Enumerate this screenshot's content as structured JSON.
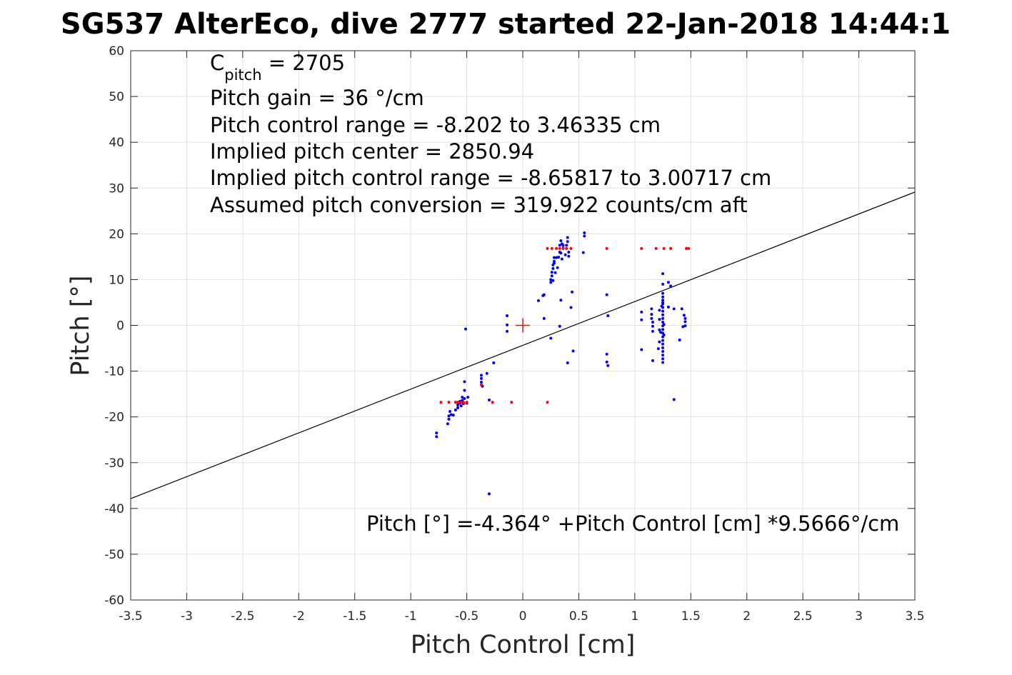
{
  "chart_data": {
    "type": "scatter",
    "title": "SG537 AlterEco, dive 2777 started 22-Jan-2018 14:44:1",
    "xlabel": "Pitch Control [cm]",
    "ylabel": "Pitch [°]",
    "xlim": [
      -3.5,
      3.5
    ],
    "ylim": [
      -60,
      60
    ],
    "xticks": [
      -3.5,
      -3,
      -2.5,
      -2,
      -1.5,
      -1,
      -0.5,
      0,
      0.5,
      1,
      1.5,
      2,
      2.5,
      3,
      3.5
    ],
    "xtick_labels": [
      "-3.5",
      "-3",
      "-2.5",
      "-2",
      "-1.5",
      "-1",
      "-0.5",
      "0",
      "0.5",
      "1",
      "1.5",
      "2",
      "2.5",
      "3",
      "3.5"
    ],
    "yticks": [
      -60,
      -50,
      -40,
      -30,
      -20,
      -10,
      0,
      10,
      20,
      30,
      40,
      50,
      60
    ],
    "ytick_labels": [
      "-60",
      "-50",
      "-40",
      "-30",
      "-20",
      "-10",
      "0",
      "10",
      "20",
      "30",
      "40",
      "50",
      "60"
    ],
    "grid": true,
    "fit_line": {
      "intercept": -4.364,
      "slope": 9.5666,
      "color": "#000000"
    },
    "center_marker": {
      "x": 0,
      "y": 0,
      "color": "#ff0000"
    },
    "series": [
      {
        "color": "#0000ff",
        "points": [
          [
            -0.77,
            -23.5
          ],
          [
            -0.77,
            -24.3
          ],
          [
            -0.67,
            -21.5
          ],
          [
            -0.66,
            -20.5
          ],
          [
            -0.66,
            -19.8
          ],
          [
            -0.65,
            -18.8
          ],
          [
            -0.64,
            -19.5
          ],
          [
            -0.62,
            -19.6
          ],
          [
            -0.6,
            -18.5
          ],
          [
            -0.58,
            -18.0
          ],
          [
            -0.58,
            -17.4
          ],
          [
            -0.56,
            -17.0
          ],
          [
            -0.56,
            -16.6
          ],
          [
            -0.55,
            -17.6
          ],
          [
            -0.54,
            -16.4
          ],
          [
            -0.54,
            -15.7
          ],
          [
            -0.53,
            -17.1
          ],
          [
            -0.52,
            -16.0
          ],
          [
            -0.52,
            -14.2
          ],
          [
            -0.52,
            -12.3
          ],
          [
            -0.51,
            -0.8
          ],
          [
            -0.5,
            -17.0
          ],
          [
            -0.49,
            -15.7
          ],
          [
            -0.37,
            -10.9
          ],
          [
            -0.37,
            -11.6
          ],
          [
            -0.37,
            -12.4
          ],
          [
            -0.36,
            -13.3
          ],
          [
            -0.32,
            -10.5
          ],
          [
            -0.3,
            -16.3
          ],
          [
            -0.3,
            -36.8
          ],
          [
            -0.26,
            -8.2
          ],
          [
            -0.14,
            2.1
          ],
          [
            -0.14,
            0.1
          ],
          [
            -0.14,
            -1.3
          ],
          [
            0.14,
            5.4
          ],
          [
            0.18,
            6.5
          ],
          [
            0.19,
            6.7
          ],
          [
            0.19,
            1.5
          ],
          [
            0.25,
            -2.8
          ],
          [
            0.25,
            9.4
          ],
          [
            0.25,
            10.0
          ],
          [
            0.26,
            10.8
          ],
          [
            0.26,
            11.6
          ],
          [
            0.27,
            12.4
          ],
          [
            0.27,
            13.2
          ],
          [
            0.28,
            14.0
          ],
          [
            0.28,
            14.8
          ],
          [
            0.29,
            11.5
          ],
          [
            0.3,
            14.8
          ],
          [
            0.31,
            12.6
          ],
          [
            0.32,
            14.9
          ],
          [
            0.33,
            16.0
          ],
          [
            0.33,
            17.5
          ],
          [
            0.34,
            18.5
          ],
          [
            0.34,
            15.8
          ],
          [
            0.35,
            17.8
          ],
          [
            0.35,
            14.5
          ],
          [
            0.36,
            16.9
          ],
          [
            0.36,
            17.5
          ],
          [
            0.38,
            15.4
          ],
          [
            0.39,
            17.5
          ],
          [
            0.4,
            18.3
          ],
          [
            0.4,
            19.2
          ],
          [
            0.41,
            16.0
          ],
          [
            0.41,
            15.1
          ],
          [
            0.43,
            3.9
          ],
          [
            0.44,
            7.3
          ],
          [
            0.45,
            -5.6
          ],
          [
            0.4,
            -8.2
          ],
          [
            0.34,
            5.5
          ],
          [
            0.33,
            -0.2
          ],
          [
            0.54,
            15.9
          ],
          [
            0.55,
            19.5
          ],
          [
            0.55,
            20.2
          ],
          [
            0.75,
            6.7
          ],
          [
            0.75,
            -6.3
          ],
          [
            0.75,
            -8.0
          ],
          [
            0.76,
            -8.8
          ],
          [
            0.76,
            2.1
          ],
          [
            1.06,
            2.9
          ],
          [
            1.06,
            1.2
          ],
          [
            1.06,
            -5.3
          ],
          [
            1.15,
            3.6
          ],
          [
            1.15,
            2.4
          ],
          [
            1.15,
            1.5
          ],
          [
            1.16,
            0.7
          ],
          [
            1.16,
            -0.2
          ],
          [
            1.16,
            -1.3
          ],
          [
            1.16,
            -7.7
          ],
          [
            1.21,
            -5.1
          ],
          [
            1.22,
            -1.0
          ],
          [
            1.22,
            -3.6
          ],
          [
            1.22,
            1.3
          ],
          [
            1.22,
            3.3
          ],
          [
            1.23,
            -1.5
          ],
          [
            1.24,
            4.2
          ],
          [
            1.25,
            11.3
          ],
          [
            1.25,
            9.0
          ],
          [
            1.25,
            7.0
          ],
          [
            1.25,
            6.2
          ],
          [
            1.25,
            5.5
          ],
          [
            1.25,
            4.7
          ],
          [
            1.25,
            3.9
          ],
          [
            1.25,
            3.1
          ],
          [
            1.25,
            2.3
          ],
          [
            1.25,
            1.5
          ],
          [
            1.25,
            0.7
          ],
          [
            1.25,
            -0.1
          ],
          [
            1.25,
            -0.9
          ],
          [
            1.25,
            -1.7
          ],
          [
            1.25,
            -2.5
          ],
          [
            1.25,
            -3.3
          ],
          [
            1.25,
            -4.1
          ],
          [
            1.25,
            -4.9
          ],
          [
            1.25,
            -5.7
          ],
          [
            1.25,
            -6.5
          ],
          [
            1.25,
            -7.3
          ],
          [
            1.25,
            -8.1
          ],
          [
            1.26,
            0.2
          ],
          [
            1.26,
            -2.1
          ],
          [
            1.3,
            9.4
          ],
          [
            1.3,
            4.0
          ],
          [
            1.32,
            8.6
          ],
          [
            1.35,
            -16.2
          ],
          [
            1.35,
            3.6
          ],
          [
            1.4,
            -3.2
          ],
          [
            1.42,
            3.6
          ],
          [
            1.43,
            -0.3
          ],
          [
            1.44,
            2.2
          ],
          [
            1.45,
            1.5
          ],
          [
            1.45,
            -0.1
          ],
          [
            1.45,
            0.8
          ],
          [
            1.25,
            5.0
          ],
          [
            0.28,
            13.6
          ],
          [
            0.27,
            9.8
          ]
        ]
      },
      {
        "color": "#ff0000",
        "points": [
          [
            -0.73,
            -16.8
          ],
          [
            -0.66,
            -16.8
          ],
          [
            -0.6,
            -16.8
          ],
          [
            -0.58,
            -16.8
          ],
          [
            -0.55,
            -16.8
          ],
          [
            -0.53,
            -16.8
          ],
          [
            -0.5,
            -16.8
          ],
          [
            -0.37,
            -13.0
          ],
          [
            -0.27,
            -16.8
          ],
          [
            -0.1,
            -16.8
          ],
          [
            0.22,
            -16.8
          ],
          [
            0.22,
            16.8
          ],
          [
            0.26,
            16.8
          ],
          [
            0.3,
            16.8
          ],
          [
            0.33,
            16.8
          ],
          [
            0.36,
            16.8
          ],
          [
            0.39,
            16.8
          ],
          [
            0.43,
            16.8
          ],
          [
            0.75,
            16.8
          ],
          [
            1.06,
            16.8
          ],
          [
            1.19,
            16.8
          ],
          [
            1.26,
            16.8
          ],
          [
            1.32,
            16.8
          ],
          [
            1.46,
            16.8
          ],
          [
            1.48,
            16.8
          ]
        ]
      }
    ],
    "annotations": [
      "C",
      "pitch",
      " = 2705",
      "Pitch gain = 36 °/cm",
      "Pitch control range = -8.202 to 3.46335 cm",
      "Implied pitch center = 2850.94",
      "Implied pitch control range = -8.65817 to 3.00717 cm",
      "Assumed pitch conversion = 319.922 counts/cm aft",
      "Pitch [°] =-4.364° +Pitch Control [cm] *9.5666°/cm"
    ]
  }
}
